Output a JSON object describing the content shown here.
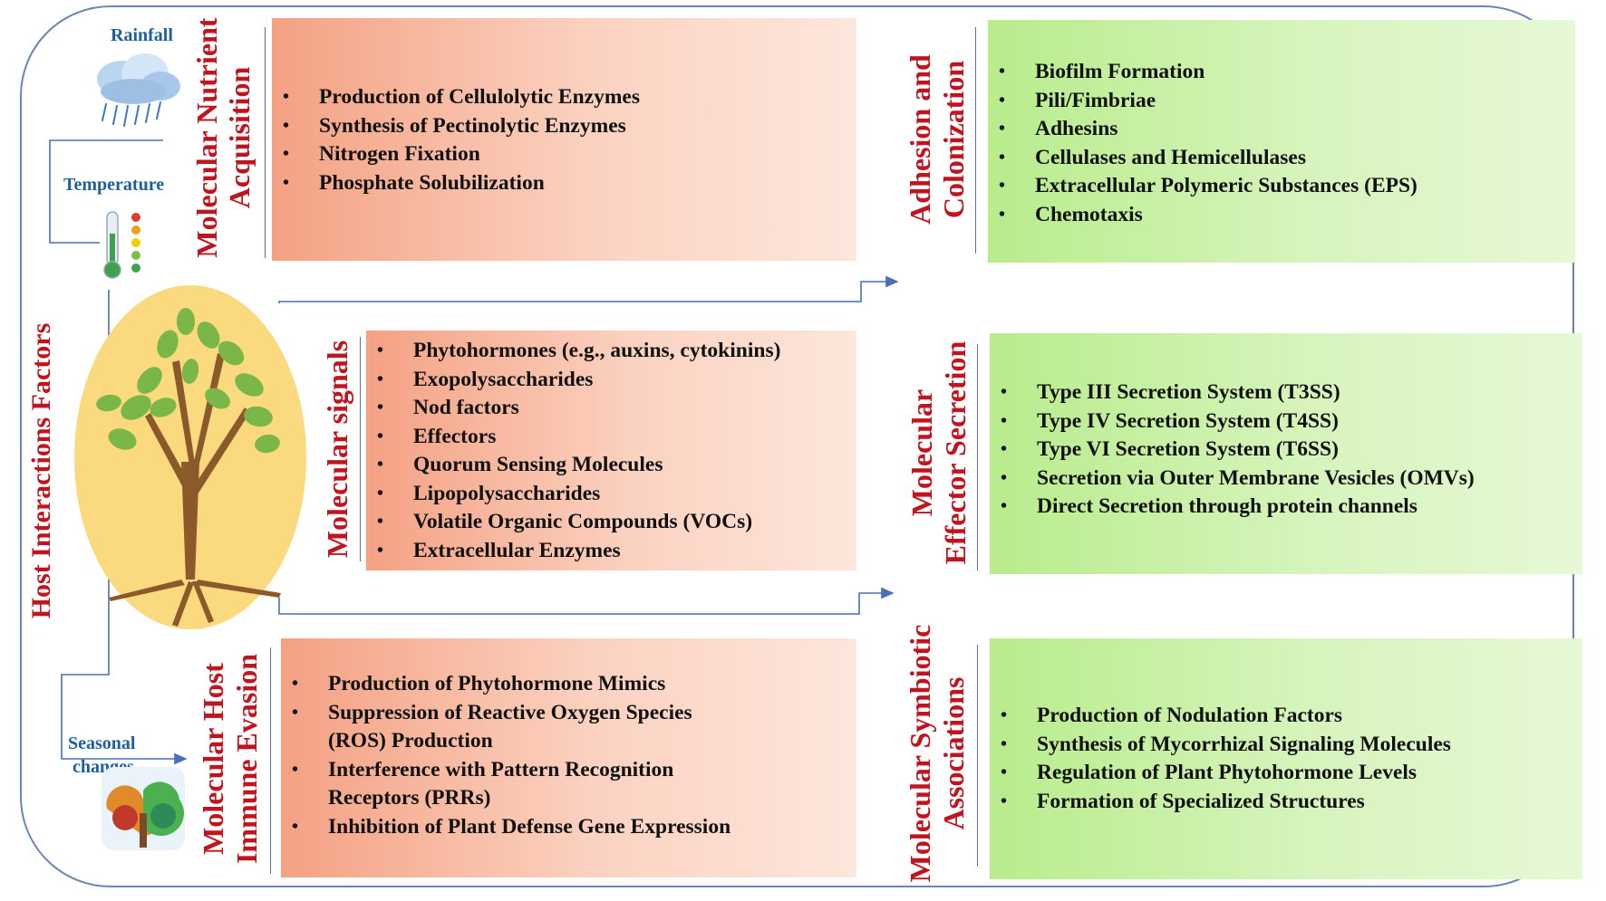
{
  "side_label": "Host Interactions  Factors",
  "env": {
    "rainfall": "Rainfall",
    "temperature": "Temperature",
    "seasonal": [
      "Seasonal",
      "changes"
    ]
  },
  "left_column": [
    {
      "title_lines": [
        "Molecular Nutrient",
        "Acquisition"
      ],
      "items": [
        "Production of Cellulolytic Enzymes",
        "Synthesis of Pectinolytic Enzymes",
        "Nitrogen Fixation",
        "Phosphate Solubilization"
      ]
    },
    {
      "title_lines": [
        "Molecular signals"
      ],
      "items": [
        "Phytohormones (e.g., auxins, cytokinins)",
        "Exopolysaccharides",
        "Nod factors",
        "Effectors",
        "Quorum Sensing Molecules",
        "Lipopolysaccharides",
        "Volatile Organic Compounds (VOCs)",
        "Extracellular Enzymes"
      ]
    },
    {
      "title_lines": [
        "Molecular Host",
        "Immune Evasion"
      ],
      "items": [
        "Production of Phytohormone Mimics",
        "Suppression of Reactive Oxygen Species (ROS) Production",
        "Interference with Pattern Recognition Receptors (PRRs)",
        "Inhibition of Plant Defense Gene Expression"
      ]
    }
  ],
  "right_column": [
    {
      "title_lines": [
        "Adhesion and",
        "Colonization"
      ],
      "items": [
        "Biofilm Formation",
        "Pili/Fimbriae",
        "Adhesins",
        "Cellulases and Hemicellulases",
        "Extracellular Polymeric Substances (EPS)",
        "Chemotaxis"
      ]
    },
    {
      "title_lines": [
        "Molecular",
        "Effector Secretion"
      ],
      "items": [
        "Type III Secretion System (T3SS)",
        "Type IV Secretion System (T4SS)",
        "Type VI Secretion System (T6SS)",
        "Secretion via Outer Membrane Vesicles (OMVs)",
        "Direct Secretion through protein channels"
      ]
    },
    {
      "title_lines": [
        "Molecular Symbiotic",
        "Associations"
      ],
      "items": [
        "Production of Nodulation Factors",
        "Synthesis of Mycorrhizal Signaling Molecules",
        "Regulation of Plant Phytohormone Levels",
        "Formation of Specialized Structures"
      ]
    }
  ],
  "colors": {
    "title": "#c0141e",
    "frame": "#6b84b8",
    "connector": "#4a6fb8",
    "env_label": "#1f5e9e",
    "orange": "#f4a183",
    "green": "#b8ec8c",
    "tree_bg": "#fbd97f"
  },
  "icons": [
    "rain-cloud-icon",
    "thermometer-icon",
    "tree-icon",
    "seasons-tree-icon"
  ]
}
